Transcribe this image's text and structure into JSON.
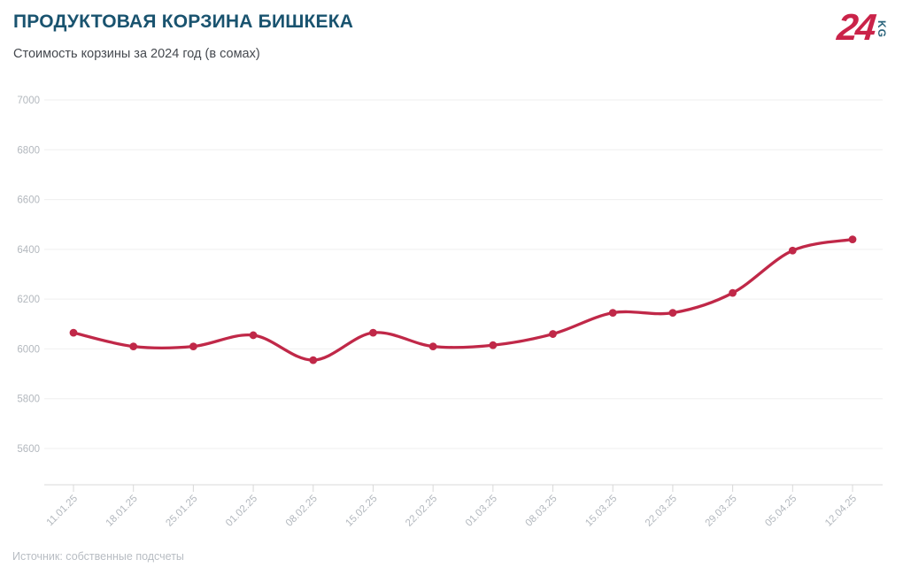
{
  "header": {
    "title": "ПРОДУКТОВАЯ КОРЗИНА БИШКЕКА",
    "subtitle": "Стоимость корзины за 2024 год (в сомах)"
  },
  "logo": {
    "number": "24",
    "suffix": "KG",
    "number_color": "#ca2349",
    "suffix_color": "#2b647c"
  },
  "footer": {
    "source": "Источник: собственные подсчеты"
  },
  "chart_data": {
    "type": "line",
    "title": "ПРОДУКТОВАЯ КОРЗИНА БИШКЕКА",
    "subtitle": "Стоимость корзины за 2024 год (в сомах)",
    "categories": [
      "11.01.25",
      "18.01.25",
      "25.01.25",
      "01.02.25",
      "08.02.25",
      "15.02.25",
      "22.02.25",
      "01.03.25",
      "08.03.25",
      "15.03.25",
      "22.03.25",
      "29.03.25",
      "05.04.25",
      "12.04.25"
    ],
    "values": [
      6065,
      6010,
      6010,
      6055,
      5955,
      6065,
      6010,
      6015,
      6060,
      6145,
      6145,
      6225,
      6395,
      6440
    ],
    "yticks": [
      5600,
      5800,
      6000,
      6200,
      6400,
      6600,
      6800,
      7000
    ],
    "ylim": [
      5600,
      7000
    ],
    "xlabel": "",
    "ylabel": "",
    "grid": true,
    "legend": false,
    "smooth": true,
    "colors": {
      "line": "#c02848",
      "point": "#c02848",
      "gridline": "#efefef",
      "axis_line": "#d8d8d8",
      "tick_label": "#b3b8be",
      "title": "#19536f",
      "subtitle": "#45494f",
      "source": "#b8bdc3"
    }
  }
}
